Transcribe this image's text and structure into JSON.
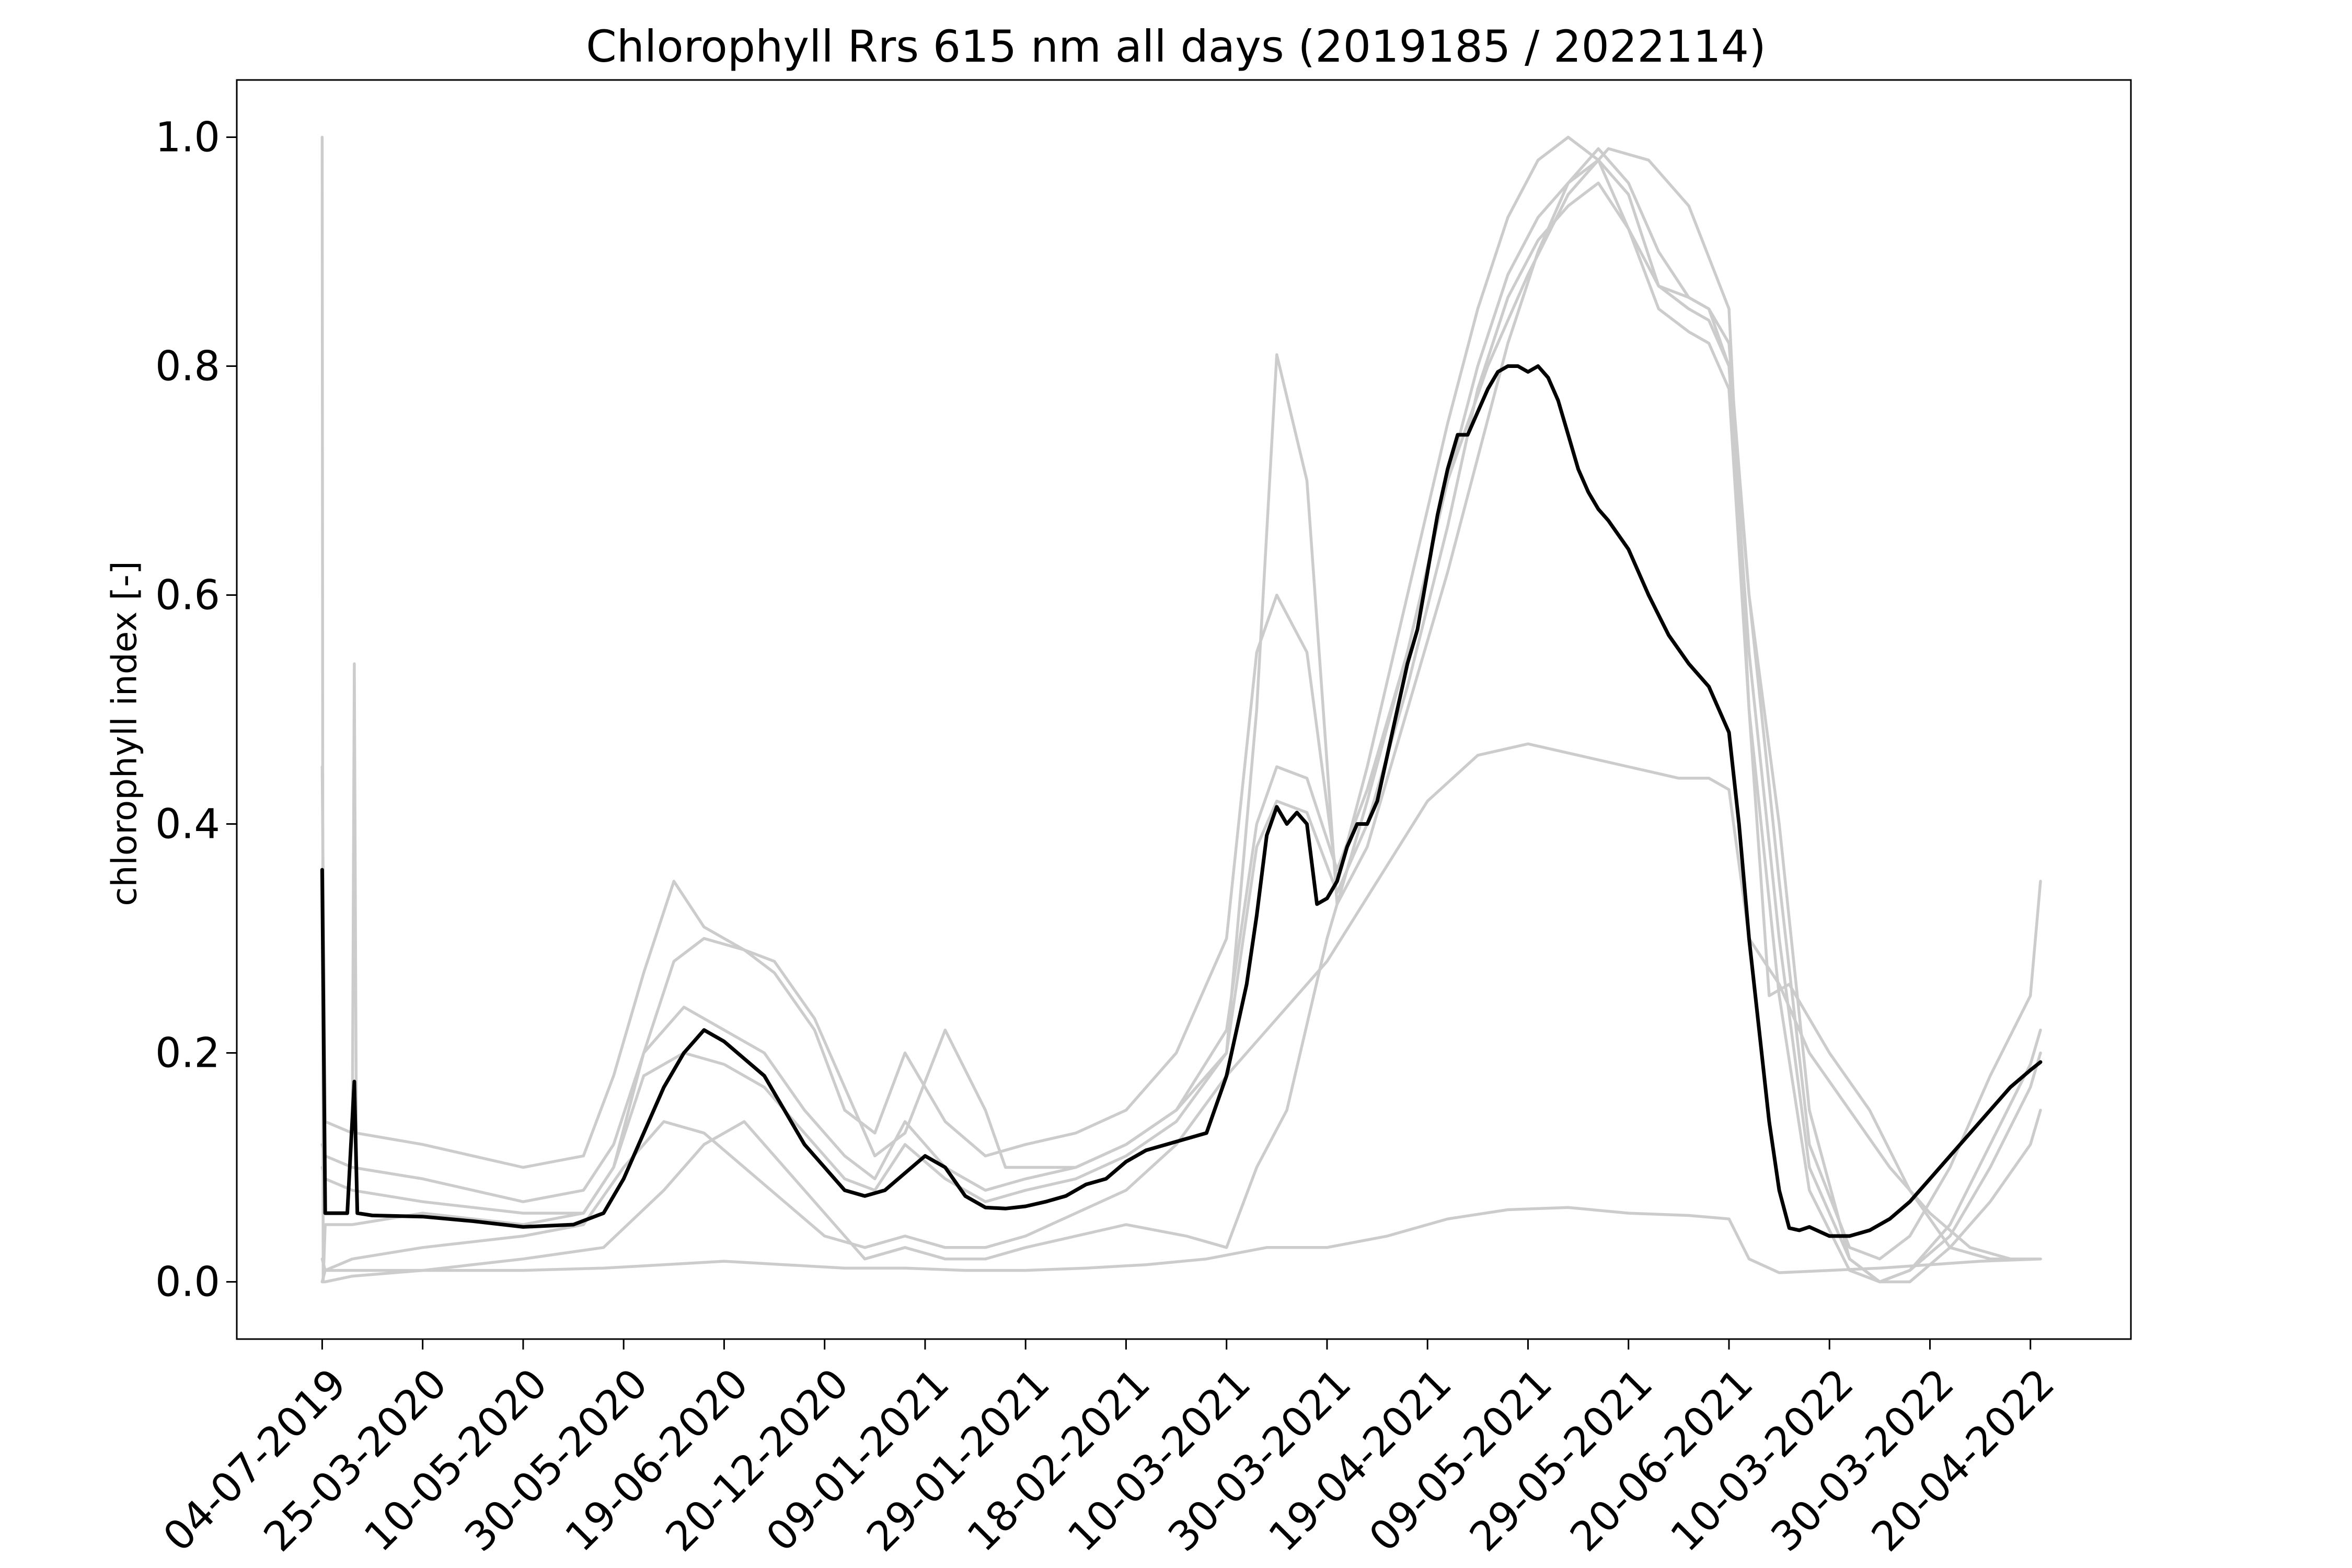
{
  "chart_data": {
    "type": "line",
    "title": "Chlorophyll Rrs 615 nm all days (2019185 / 2022114)",
    "xlabel": "",
    "ylabel": "chlorophyll index [-]",
    "ylim": [
      -0.05,
      1.05
    ],
    "yticks": [
      0.0,
      0.2,
      0.4,
      0.6,
      0.8,
      1.0
    ],
    "ytick_labels": [
      "0.0",
      "0.2",
      "0.4",
      "0.6",
      "0.8",
      "1.0"
    ],
    "xlim": [
      -8.5,
      180
    ],
    "xticks": [
      0,
      10,
      20,
      30,
      40,
      50,
      60,
      70,
      80,
      90,
      100,
      110,
      120,
      130,
      140,
      150,
      160,
      170
    ],
    "xtick_labels": [
      "04-07-2019",
      "25-03-2020",
      "10-05-2020",
      "30-05-2020",
      "19-06-2020",
      "20-12-2020",
      "09-01-2021",
      "29-01-2021",
      "18-02-2021",
      "10-03-2021",
      "30-03-2021",
      "19-04-2021",
      "09-05-2021",
      "29-05-2021",
      "20-06-2021",
      "10-03-2022",
      "30-03-2022",
      "20-04-2022"
    ],
    "grid": false,
    "colors": {
      "individual": "#cccccc",
      "mean": "#000000"
    },
    "series": [
      {
        "role": "individual",
        "x": [
          0,
          0.1,
          0.3,
          3,
          10,
          20,
          26,
          29,
          32,
          35,
          38,
          42,
          45,
          49,
          52,
          55,
          58,
          62,
          66,
          68,
          71,
          75,
          80,
          85,
          90,
          93,
          95,
          98,
          101,
          104,
          108,
          112,
          115,
          118,
          121,
          124,
          127,
          130,
          133,
          136,
          138,
          140,
          142,
          145,
          148,
          152,
          155,
          158,
          162,
          166,
          170,
          171
        ],
        "y": [
          1.0,
          0.0,
          0.05,
          0.05,
          0.06,
          0.05,
          0.06,
          0.1,
          0.2,
          0.28,
          0.3,
          0.29,
          0.28,
          0.23,
          0.17,
          0.11,
          0.13,
          0.22,
          0.15,
          0.1,
          0.1,
          0.1,
          0.12,
          0.15,
          0.2,
          0.5,
          0.81,
          0.7,
          0.33,
          0.38,
          0.5,
          0.62,
          0.72,
          0.82,
          0.9,
          0.96,
          0.99,
          0.96,
          0.9,
          0.86,
          0.85,
          0.8,
          0.6,
          0.4,
          0.15,
          0.02,
          0.0,
          0.0,
          0.03,
          0.07,
          0.12,
          0.15
        ]
      },
      {
        "role": "individual",
        "x": [
          0,
          0.3,
          3,
          3.2,
          3.4,
          10,
          20,
          26,
          29,
          32,
          35,
          38,
          42,
          45,
          49,
          52,
          55,
          58,
          62,
          66,
          70,
          75,
          80,
          85,
          90,
          93,
          95,
          98,
          101,
          104,
          108,
          112,
          115,
          118,
          121,
          124,
          127,
          130,
          133,
          136,
          138,
          140,
          142,
          145,
          148,
          152,
          155,
          158,
          162,
          166,
          170,
          171
        ],
        "y": [
          0.45,
          0.14,
          0.13,
          0.54,
          0.13,
          0.12,
          0.1,
          0.11,
          0.18,
          0.27,
          0.35,
          0.31,
          0.29,
          0.27,
          0.22,
          0.15,
          0.13,
          0.2,
          0.14,
          0.11,
          0.12,
          0.13,
          0.15,
          0.2,
          0.3,
          0.55,
          0.6,
          0.55,
          0.35,
          0.45,
          0.6,
          0.75,
          0.85,
          0.93,
          0.98,
          1.0,
          0.98,
          0.92,
          0.87,
          0.86,
          0.85,
          0.82,
          0.6,
          0.35,
          0.12,
          0.03,
          0.02,
          0.04,
          0.1,
          0.18,
          0.25,
          0.35
        ]
      },
      {
        "role": "individual",
        "x": [
          0,
          0.3,
          3,
          10,
          20,
          26,
          29,
          32,
          36,
          40,
          44,
          48,
          52,
          55,
          58,
          62,
          66,
          70,
          75,
          80,
          85,
          90,
          93,
          95,
          98,
          101,
          104,
          108,
          112,
          115,
          118,
          121,
          124,
          127,
          130,
          133,
          136,
          138,
          140,
          142,
          145,
          148,
          152,
          155,
          158,
          162,
          166,
          170,
          171
        ],
        "y": [
          0.12,
          0.11,
          0.1,
          0.09,
          0.07,
          0.08,
          0.12,
          0.2,
          0.24,
          0.22,
          0.2,
          0.15,
          0.11,
          0.09,
          0.14,
          0.1,
          0.08,
          0.09,
          0.1,
          0.12,
          0.15,
          0.22,
          0.4,
          0.45,
          0.44,
          0.36,
          0.43,
          0.55,
          0.7,
          0.8,
          0.88,
          0.93,
          0.96,
          0.98,
          0.95,
          0.87,
          0.85,
          0.84,
          0.8,
          0.55,
          0.3,
          0.1,
          0.02,
          0.0,
          0.01,
          0.05,
          0.12,
          0.19,
          0.22
        ]
      },
      {
        "role": "individual",
        "x": [
          0,
          0.3,
          3,
          10,
          20,
          26,
          29,
          32,
          36,
          40,
          44,
          48,
          52,
          55,
          58,
          62,
          66,
          70,
          75,
          80,
          85,
          90,
          93,
          95,
          98,
          101,
          104,
          108,
          112,
          115,
          118,
          121,
          124,
          127,
          130,
          133,
          136,
          138,
          140,
          142,
          145,
          148,
          152,
          155,
          158,
          162,
          166,
          170,
          171
        ],
        "y": [
          0.1,
          0.09,
          0.08,
          0.07,
          0.06,
          0.06,
          0.1,
          0.18,
          0.2,
          0.19,
          0.17,
          0.13,
          0.09,
          0.08,
          0.12,
          0.09,
          0.07,
          0.08,
          0.09,
          0.11,
          0.14,
          0.2,
          0.38,
          0.42,
          0.41,
          0.34,
          0.4,
          0.52,
          0.66,
          0.78,
          0.86,
          0.91,
          0.94,
          0.96,
          0.92,
          0.85,
          0.83,
          0.82,
          0.78,
          0.5,
          0.25,
          0.08,
          0.01,
          0.0,
          0.01,
          0.04,
          0.1,
          0.17,
          0.2
        ]
      },
      {
        "role": "individual",
        "x": [
          0,
          0.3,
          3,
          10,
          20,
          26,
          30,
          34,
          38,
          42,
          46,
          50,
          54,
          58,
          62,
          66,
          70,
          75,
          80,
          85,
          90,
          95,
          100,
          105,
          110,
          115,
          120,
          125,
          130,
          135,
          138,
          140,
          142,
          145,
          148,
          152,
          156,
          160,
          164,
          168,
          171
        ],
        "y": [
          0.02,
          0.01,
          0.02,
          0.03,
          0.04,
          0.05,
          0.1,
          0.14,
          0.13,
          0.1,
          0.07,
          0.04,
          0.03,
          0.04,
          0.03,
          0.03,
          0.04,
          0.06,
          0.08,
          0.12,
          0.18,
          0.23,
          0.28,
          0.35,
          0.42,
          0.46,
          0.47,
          0.46,
          0.45,
          0.44,
          0.44,
          0.43,
          0.3,
          0.26,
          0.2,
          0.15,
          0.1,
          0.06,
          0.03,
          0.02,
          0.02
        ]
      },
      {
        "role": "individual",
        "x": [
          0,
          0.3,
          3,
          10,
          20,
          28,
          34,
          40,
          46,
          52,
          58,
          64,
          70,
          76,
          82,
          88,
          94,
          100,
          106,
          112,
          118,
          124,
          130,
          136,
          140,
          142,
          145,
          150,
          155,
          160,
          165,
          171
        ],
        "y": [
          0.0,
          0.0,
          0.005,
          0.01,
          0.01,
          0.012,
          0.015,
          0.018,
          0.015,
          0.012,
          0.012,
          0.01,
          0.01,
          0.012,
          0.015,
          0.02,
          0.03,
          0.03,
          0.04,
          0.055,
          0.063,
          0.065,
          0.06,
          0.058,
          0.055,
          0.02,
          0.008,
          0.01,
          0.012,
          0.015,
          0.018,
          0.02
        ]
      },
      {
        "role": "individual",
        "x": [
          0,
          0.3,
          3,
          10,
          20,
          28,
          34,
          38,
          42,
          46,
          50,
          54,
          58,
          62,
          66,
          70,
          75,
          80,
          86,
          90,
          93,
          96,
          100,
          104,
          108,
          112,
          116,
          120,
          124,
          128,
          132,
          136,
          140,
          142,
          144,
          146,
          150,
          154,
          158,
          162,
          166,
          171
        ],
        "y": [
          0.0,
          0.01,
          0.01,
          0.01,
          0.02,
          0.03,
          0.08,
          0.12,
          0.14,
          0.1,
          0.06,
          0.02,
          0.03,
          0.02,
          0.02,
          0.03,
          0.04,
          0.05,
          0.04,
          0.03,
          0.1,
          0.15,
          0.3,
          0.42,
          0.55,
          0.7,
          0.8,
          0.88,
          0.95,
          0.99,
          0.98,
          0.94,
          0.85,
          0.5,
          0.25,
          0.26,
          0.2,
          0.15,
          0.08,
          0.03,
          0.02,
          0.02
        ]
      },
      {
        "role": "mean",
        "x": [
          0,
          0.3,
          2.5,
          3.2,
          3.5,
          5,
          10,
          15,
          20,
          25,
          28,
          30,
          32,
          34,
          36,
          38,
          40,
          42,
          44,
          46,
          48,
          50,
          52,
          54,
          56,
          58,
          60,
          62,
          64,
          66,
          68,
          70,
          72,
          74,
          76,
          78,
          80,
          82,
          84,
          86,
          88,
          90,
          91,
          92,
          93,
          94,
          95,
          96,
          97,
          98,
          99,
          100,
          101,
          102,
          103,
          104,
          105,
          106,
          107,
          108,
          109,
          110,
          111,
          112,
          113,
          114,
          115,
          116,
          117,
          118,
          119,
          120,
          121,
          122,
          123,
          124,
          125,
          126,
          127,
          128,
          130,
          132,
          134,
          136,
          138,
          140,
          141,
          142,
          143,
          144,
          145,
          146,
          147,
          148,
          150,
          152,
          154,
          156,
          158,
          160,
          162,
          164,
          166,
          168,
          170,
          171
        ],
        "y": [
          0.36,
          0.06,
          0.06,
          0.175,
          0.06,
          0.058,
          0.057,
          0.053,
          0.048,
          0.05,
          0.06,
          0.09,
          0.13,
          0.17,
          0.2,
          0.22,
          0.21,
          0.195,
          0.18,
          0.15,
          0.12,
          0.1,
          0.08,
          0.075,
          0.08,
          0.095,
          0.11,
          0.1,
          0.075,
          0.065,
          0.064,
          0.066,
          0.07,
          0.075,
          0.085,
          0.09,
          0.105,
          0.115,
          0.12,
          0.125,
          0.13,
          0.18,
          0.22,
          0.26,
          0.32,
          0.39,
          0.415,
          0.4,
          0.41,
          0.4,
          0.33,
          0.335,
          0.35,
          0.38,
          0.4,
          0.4,
          0.42,
          0.46,
          0.5,
          0.54,
          0.57,
          0.62,
          0.67,
          0.71,
          0.74,
          0.74,
          0.76,
          0.78,
          0.795,
          0.8,
          0.8,
          0.795,
          0.8,
          0.79,
          0.77,
          0.74,
          0.71,
          0.69,
          0.675,
          0.665,
          0.64,
          0.6,
          0.565,
          0.54,
          0.52,
          0.48,
          0.4,
          0.3,
          0.22,
          0.14,
          0.08,
          0.047,
          0.045,
          0.048,
          0.04,
          0.04,
          0.045,
          0.055,
          0.07,
          0.09,
          0.11,
          0.13,
          0.15,
          0.17,
          0.185,
          0.192
        ]
      }
    ]
  }
}
